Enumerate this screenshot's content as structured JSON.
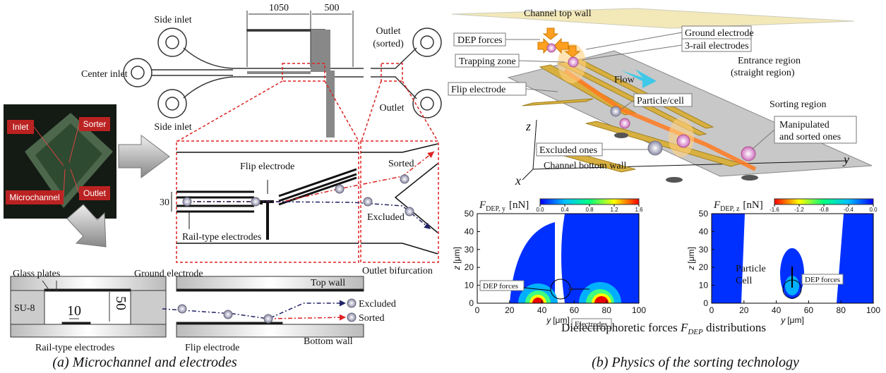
{
  "panel_a": {
    "chip": {
      "side_inlet_top": "Side inlet",
      "center_inlet": "Center inlet",
      "side_inlet_bottom": "Side inlet",
      "outlet_sorted": [
        "Outlet",
        "(sorted)"
      ],
      "outlet": "Outlet",
      "dimensions": [
        "1050",
        "500"
      ]
    },
    "photo": {
      "labels": [
        "Inlet",
        "Sorter",
        "Microchannel",
        "Outlet"
      ]
    },
    "zoom": {
      "flip_electrode": "Flip electrode",
      "gap": "30",
      "rail_electrodes": "Rail-type electrodes",
      "sorted": "Sorted",
      "excluded": "Excluded",
      "outlet_bifurcation": "Outlet bifurcation"
    },
    "cross_section": {
      "glass_plates": "Glass plates",
      "ground_electrode": "Ground electrode",
      "su8": "SU-8",
      "width": "10",
      "height": "50",
      "rail_electrodes": "Rail-type electrodes",
      "flip_electrode": "Flip electrode",
      "top_wall": "Top wall",
      "bottom_wall": "Bottom wall",
      "excluded": "Excluded",
      "sorted": "Sorted"
    },
    "caption": "(a) Microchannel and electrodes"
  },
  "panel_b": {
    "illustration": {
      "top_wall": "Channel top wall",
      "dep_forces": "DEP forces",
      "ground_electrode": "Ground electrode",
      "rail_electrodes": "3-rail electrodes",
      "trapping_zone": "Trapping zone",
      "flow": "Flow",
      "entrance_region": [
        "Entrance region",
        "(straight region)"
      ],
      "flip_electrode": "Flip electrode",
      "particle_cell": "Particle/cell",
      "sorting_region": "Sorting region",
      "manipulated": [
        "Manipulated",
        "and sorted ones"
      ],
      "excluded": "Excluded ones",
      "bottom_wall": "Channel bottom wall",
      "axes": [
        "z",
        "x",
        "y"
      ]
    },
    "plots": [
      {
        "title": [
          "F",
          "DEP, y",
          "[nN]"
        ],
        "xlabel": [
          "y",
          "[μm]"
        ],
        "ylabel": [
          "z",
          "[μm]"
        ],
        "xlim": [
          0,
          100
        ],
        "ylim": [
          0,
          50
        ],
        "xticks": [
          0,
          20,
          40,
          60,
          80,
          100
        ],
        "yticks": [
          0,
          10,
          20,
          30,
          40,
          50
        ],
        "colorbar": {
          "lim": [
            0,
            1.6
          ],
          "ticks": [
            {
              "value": 0,
              "label": "0.0"
            },
            0.4,
            0.8,
            1.2,
            1.6
          ],
          "colors": [
            "#0000ff",
            "#00c0ff",
            "#00ff80",
            "#ffff00",
            "#ff0000"
          ]
        },
        "annotations": [
          "DEP forces",
          "Electrodes"
        ]
      },
      {
        "title": [
          "F",
          "DEP, z",
          "[nN]"
        ],
        "xlabel": [
          "y",
          "[μm]"
        ],
        "ylabel": [
          "z",
          "[μm]"
        ],
        "xlim": [
          0,
          100
        ],
        "ylim": [
          0,
          50
        ],
        "xticks": [
          0,
          20,
          40,
          60,
          80,
          100
        ],
        "yticks": [
          0,
          10,
          20,
          30,
          40,
          50
        ],
        "colorbar": {
          "lim": [
            -1.6,
            0
          ],
          "ticks": [
            -1.6,
            -1.2,
            -0.8,
            -0.4,
            {
              "value": 0,
              "label": "0.0"
            }
          ],
          "colors": [
            "#ff0000",
            "#ffff00",
            "#00ff80",
            "#00c0ff",
            "#0000ff"
          ]
        },
        "annotations": [
          "Particle",
          "Cell",
          "DEP forces"
        ]
      }
    ],
    "plots_caption": [
      "Dielectrophoretic forces ",
      "F",
      "DEP",
      " distributions"
    ],
    "caption": "(b) Physics of the sorting technology"
  }
}
